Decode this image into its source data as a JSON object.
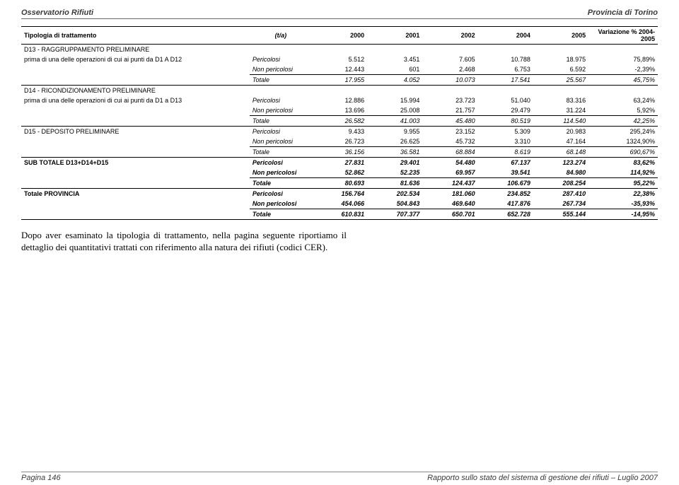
{
  "header": {
    "left": "Osservatorio Rifiuti",
    "right": "Provincia di Torino"
  },
  "footer": {
    "left": "Pagina 146",
    "right": "Rapporto sullo stato del sistema di gestione dei rifiuti – Luglio 2007"
  },
  "columns": {
    "label": "Tipologia di trattamento",
    "unit": "(t/a)",
    "y2000": "2000",
    "y2001": "2001",
    "y2002": "2002",
    "y2004": "2004",
    "y2005": "2005",
    "var": "Variazione % 2004-2005"
  },
  "sections": [
    {
      "title": "D13 - RAGGRUPPAMENTO PRELIMINARE",
      "sub": "prima di una delle operazioni di cui ai punti da D1 A D12",
      "rows": [
        {
          "type": "Pericolosi",
          "v": [
            "5.512",
            "3.451",
            "7.605",
            "10.788",
            "18.975",
            "75,89%"
          ]
        },
        {
          "type": "Non pericolosi",
          "v": [
            "12.443",
            "601",
            "2.468",
            "6.753",
            "6.592",
            "-2,39%"
          ]
        },
        {
          "type": "Totale",
          "v": [
            "17.955",
            "4.052",
            "10.073",
            "17.541",
            "25.567",
            "45,75%"
          ],
          "total": true
        }
      ]
    },
    {
      "title": "D14 - RICONDIZIONAMENTO PRELIMINARE",
      "sub": "prima di una delle operazioni di cui ai punti da D1 a D13",
      "rows": [
        {
          "type": "Pericolosi",
          "v": [
            "12.886",
            "15.994",
            "23.723",
            "51.040",
            "83.316",
            "63,24%"
          ]
        },
        {
          "type": "Non pericolosi",
          "v": [
            "13.696",
            "25.008",
            "21.757",
            "29.479",
            "31.224",
            "5,92%"
          ]
        },
        {
          "type": "Totale",
          "v": [
            "26.582",
            "41.003",
            "45.480",
            "80.519",
            "114.540",
            "42,25%"
          ],
          "total": true
        }
      ]
    },
    {
      "title": "D15 - DEPOSITO PRELIMINARE",
      "inline": true,
      "rows": [
        {
          "type": "Pericolosi",
          "v": [
            "9.433",
            "9.955",
            "23.152",
            "5.309",
            "20.983",
            "295,24%"
          ]
        },
        {
          "type": "Non pericolosi",
          "v": [
            "26.723",
            "26.625",
            "45.732",
            "3.310",
            "47.164",
            "1324,90%"
          ]
        },
        {
          "type": "Totale",
          "v": [
            "36.156",
            "36.581",
            "68.884",
            "8.619",
            "68.148",
            "690,67%"
          ],
          "total": true
        }
      ]
    },
    {
      "title": "SUB TOTALE D13+D14+D15",
      "inline": true,
      "bold": true,
      "rows": [
        {
          "type": "Pericolosi",
          "v": [
            "27.831",
            "29.401",
            "54.480",
            "67.137",
            "123.274",
            "83,62%"
          ]
        },
        {
          "type": "Non pericolosi",
          "v": [
            "52.862",
            "52.235",
            "69.957",
            "39.541",
            "84.980",
            "114,92%"
          ]
        },
        {
          "type": "Totale",
          "v": [
            "80.693",
            "81.636",
            "124.437",
            "106.679",
            "208.254",
            "95,22%"
          ],
          "total": true
        }
      ]
    },
    {
      "title": "Totale PROVINCIA",
      "inline": true,
      "bold": true,
      "grand": true,
      "rows": [
        {
          "type": "Pericolosi",
          "v": [
            "156.764",
            "202.534",
            "181.060",
            "234.852",
            "287.410",
            "22,38%"
          ]
        },
        {
          "type": "Non pericolosi",
          "v": [
            "454.066",
            "504.843",
            "469.640",
            "417.876",
            "267.734",
            "-35,93%"
          ]
        },
        {
          "type": "Totale",
          "v": [
            "610.831",
            "707.377",
            "650.701",
            "652.728",
            "555.144",
            "-14,95%"
          ],
          "total": true
        }
      ]
    }
  ],
  "bodyText": "Dopo aver esaminato la tipologia di trattamento, nella pagina seguente riportiamo il dettaglio dei quantitativi trattati con riferimento alla natura dei rifiuti (codici CER)."
}
